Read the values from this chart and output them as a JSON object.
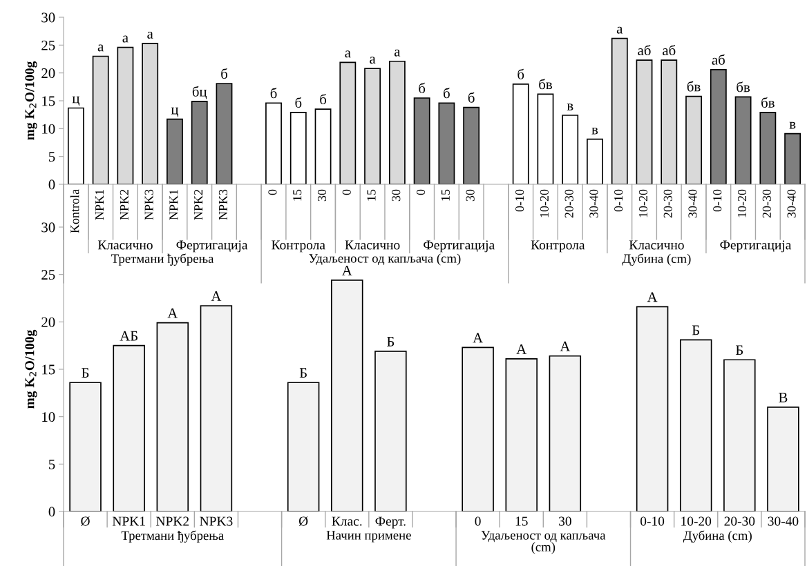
{
  "chart_data": [
    {
      "type": "bar",
      "ylabel": "mg K$_{2}$O/100g",
      "ylim": [
        0,
        30
      ],
      "yticks": [
        0,
        5,
        10,
        15,
        20,
        25,
        30
      ],
      "categories": [
        "Kontrola",
        "NPK1",
        "NPK2",
        "NPK3",
        "NPK1",
        "NPK2",
        "NPK3",
        null,
        "0",
        "15",
        "30",
        "0",
        "15",
        "30",
        "0",
        "15",
        "30",
        null,
        "0-10",
        "10-20",
        "20-30",
        "30-40",
        "0-10",
        "10-20",
        "20-30",
        "30-40",
        "0-10",
        "10-20",
        "20-30",
        "30-40"
      ],
      "values": [
        13.7,
        23.0,
        24.6,
        25.3,
        11.7,
        14.9,
        18.1,
        null,
        14.6,
        12.9,
        13.5,
        21.9,
        20.8,
        22.1,
        15.5,
        14.6,
        13.8,
        null,
        18.0,
        16.2,
        12.4,
        8.1,
        26.2,
        22.3,
        22.3,
        15.8,
        20.6,
        15.7,
        12.9,
        9.1
      ],
      "colors": [
        "#ffffff",
        "#d9d9d9",
        "#d9d9d9",
        "#d9d9d9",
        "#7f7f7f",
        "#7f7f7f",
        "#7f7f7f",
        null,
        "#ffffff",
        "#ffffff",
        "#ffffff",
        "#d9d9d9",
        "#d9d9d9",
        "#d9d9d9",
        "#7f7f7f",
        "#7f7f7f",
        "#7f7f7f",
        null,
        "#ffffff",
        "#ffffff",
        "#ffffff",
        "#ffffff",
        "#d9d9d9",
        "#d9d9d9",
        "#d9d9d9",
        "#d9d9d9",
        "#7f7f7f",
        "#7f7f7f",
        "#7f7f7f",
        "#7f7f7f"
      ],
      "value_labels": [
        "ц",
        "а",
        "а",
        "а",
        "ц",
        "бц",
        "б",
        null,
        "б",
        "б",
        "б",
        "а",
        "а",
        "а",
        "б",
        "б",
        "б",
        null,
        "б",
        "бв",
        "в",
        "в",
        "а",
        "аб",
        "аб",
        "бв",
        "аб",
        "бв",
        "бв",
        "в"
      ],
      "annotations": [
        "Класично",
        "Фертигација",
        "Контрола",
        "Класично",
        "Фертигација",
        "Контрола",
        "Класично",
        "Фертигација",
        "Третмани ђубрења",
        "Удаљеност од капљача (cm)",
        "Дубина (cm)"
      ]
    },
    {
      "type": "bar",
      "ylabel": "mg K$_{2}$O/100g",
      "ylim": [
        0,
        30
      ],
      "yticks": [
        0,
        5,
        10,
        15,
        20,
        25,
        30
      ],
      "categories": [
        "Ø",
        "NPK1",
        "NPK2",
        "NPK3",
        null,
        "Ø",
        "Клас.",
        "Ферт.",
        null,
        "0",
        "15",
        "30",
        null,
        "0-10",
        "10-20",
        "20-30",
        "30-40"
      ],
      "values": [
        13.6,
        17.5,
        19.9,
        21.7,
        null,
        13.6,
        24.4,
        16.9,
        null,
        17.3,
        16.1,
        16.4,
        null,
        21.6,
        18.1,
        16.0,
        11.0
      ],
      "colors": [
        "#f2f2f2",
        "#f2f2f2",
        "#f2f2f2",
        "#f2f2f2",
        null,
        "#f2f2f2",
        "#f2f2f2",
        "#f2f2f2",
        null,
        "#f2f2f2",
        "#f2f2f2",
        "#f2f2f2",
        null,
        "#f2f2f2",
        "#f2f2f2",
        "#f2f2f2",
        "#f2f2f2"
      ],
      "value_labels": [
        "Б",
        "АБ",
        "А",
        "А",
        null,
        "Б",
        "А",
        "Б",
        null,
        "А",
        "А",
        "А",
        null,
        "А",
        "Б",
        "Б",
        "В"
      ],
      "annotations": [
        "Третмани ђубрења",
        "Начин примене",
        "Удаљеност од капљача\n(cm)",
        "Дубина (cm)"
      ]
    }
  ]
}
